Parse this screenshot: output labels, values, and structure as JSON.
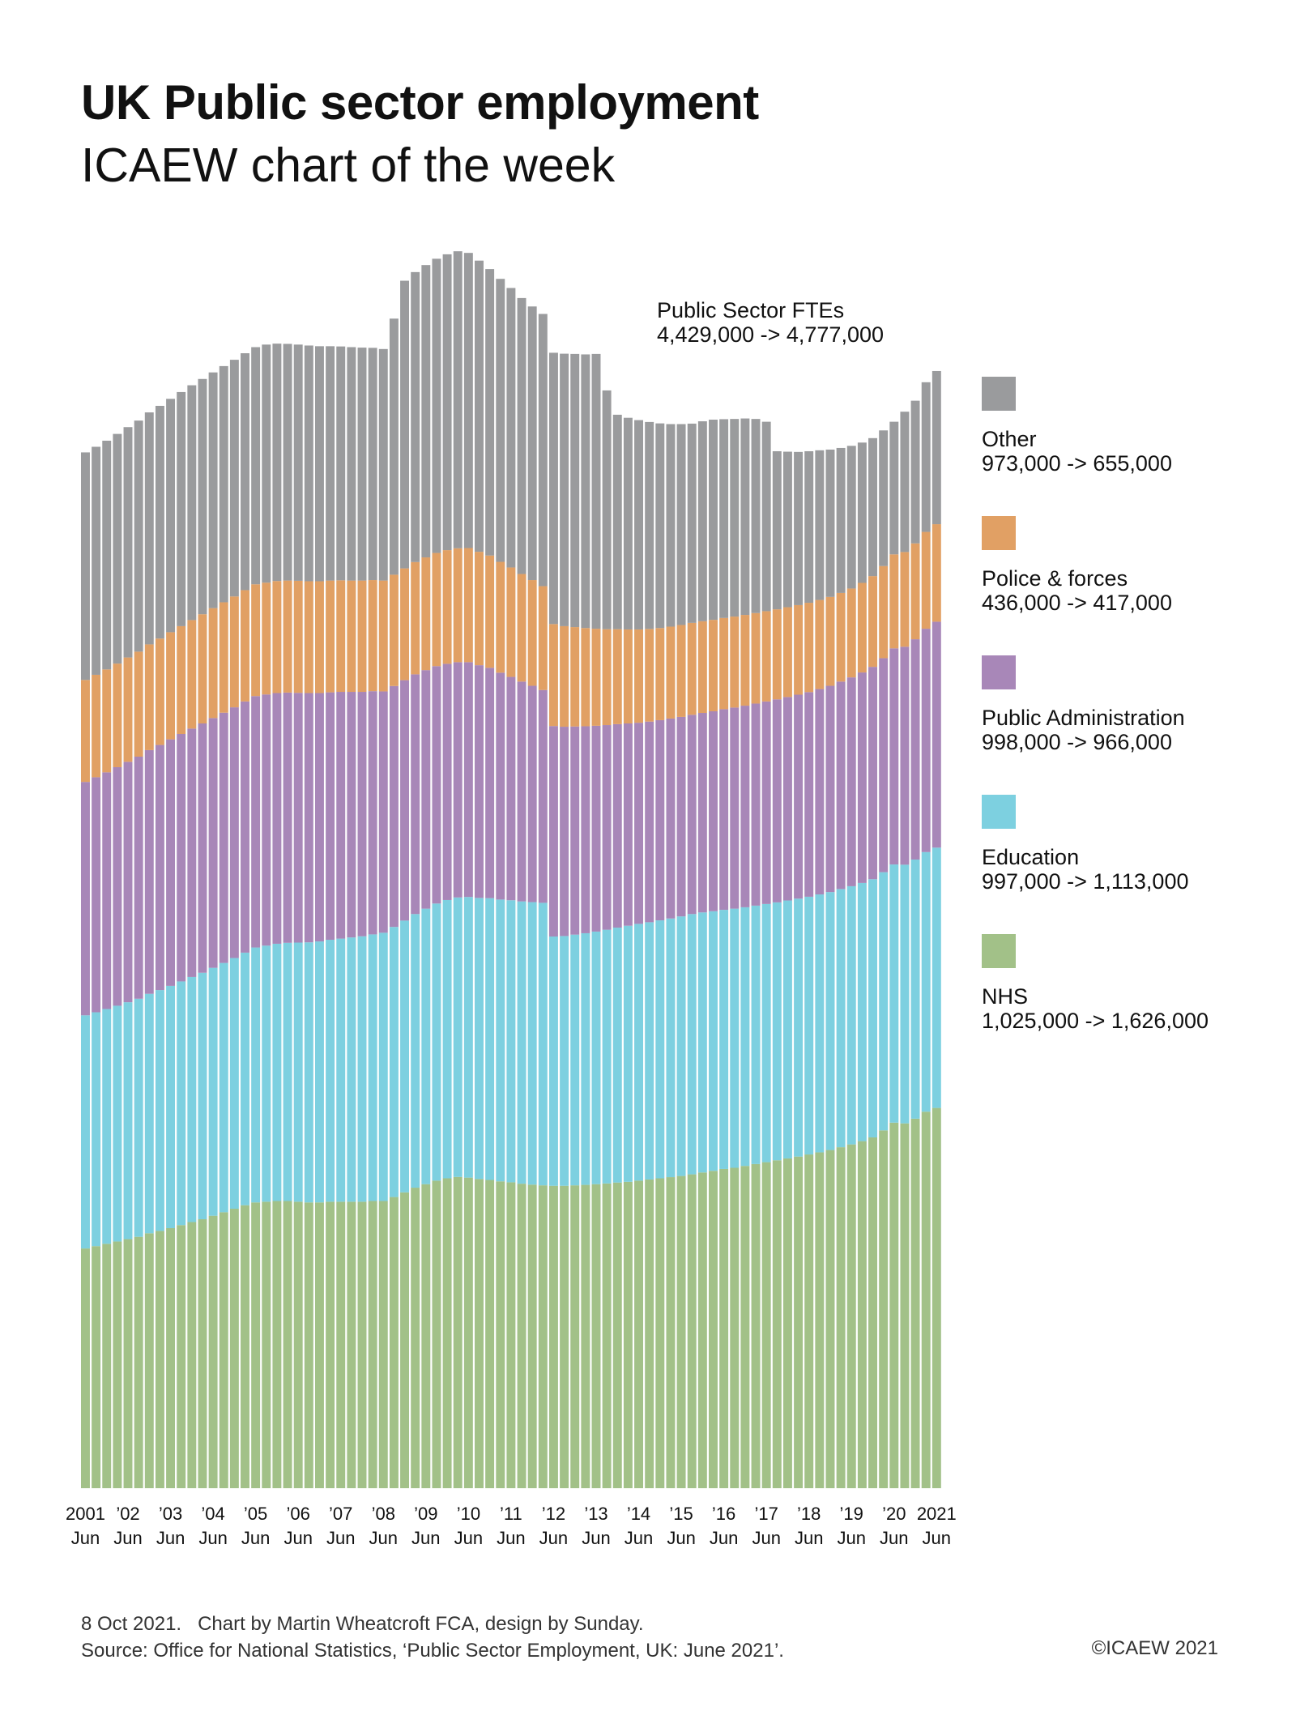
{
  "header": {
    "title": "UK Public sector employment",
    "subtitle": "ICAEW chart of the week"
  },
  "annotation": {
    "line1": "Public Sector FTEs",
    "line2": "4,429,000 -> 4,777,000"
  },
  "legend": [
    {
      "label": "Other",
      "change": "973,000 -> 655,000",
      "color": "#9a9b9d"
    },
    {
      "label": "Police & forces",
      "change": "436,000 -> 417,000",
      "color": "#e1a064"
    },
    {
      "label": "Public Administration",
      "change": "998,000 -> 966,000",
      "color": "#a887b8"
    },
    {
      "label": "Education",
      "change": "997,000 -> 1,113,000",
      "color": "#7dd0e0"
    },
    {
      "label": "NHS",
      "change": "1,025,000 -> 1,626,000",
      "color": "#a2c188"
    }
  ],
  "footer": {
    "line1": "8 Oct 2021.   Chart by Martin Wheatcroft FCA, design by Sunday.",
    "line2": "Source: Office for National Statistics, ‘Public Sector Employment, UK: June 2021’.",
    "copyright": "©ICAEW 2021"
  },
  "chart_data": {
    "type": "bar",
    "stacked": true,
    "units": "thousand FTEs",
    "x_start": "2001 Jun",
    "x_end": "2021 Jun",
    "frequency": "quarterly",
    "xticks": [
      {
        "top": "2001",
        "bottom": "Jun"
      },
      {
        "top": "’02",
        "bottom": "Jun"
      },
      {
        "top": "’03",
        "bottom": "Jun"
      },
      {
        "top": "’04",
        "bottom": "Jun"
      },
      {
        "top": "’05",
        "bottom": "Jun"
      },
      {
        "top": "’06",
        "bottom": "Jun"
      },
      {
        "top": "’07",
        "bottom": "Jun"
      },
      {
        "top": "’08",
        "bottom": "Jun"
      },
      {
        "top": "’09",
        "bottom": "Jun"
      },
      {
        "top": "’10",
        "bottom": "Jun"
      },
      {
        "top": "’11",
        "bottom": "Jun"
      },
      {
        "top": "’12",
        "bottom": "Jun"
      },
      {
        "top": "’13",
        "bottom": "Jun"
      },
      {
        "top": "’14",
        "bottom": "Jun"
      },
      {
        "top": "’15",
        "bottom": "Jun"
      },
      {
        "top": "’16",
        "bottom": "Jun"
      },
      {
        "top": "’17",
        "bottom": "Jun"
      },
      {
        "top": "’18",
        "bottom": "Jun"
      },
      {
        "top": "’19",
        "bottom": "Jun"
      },
      {
        "top": "’20",
        "bottom": "Jun"
      },
      {
        "top": "2021",
        "bottom": "Jun"
      }
    ],
    "ylim": [
      0,
      5300
    ],
    "grid": false,
    "legend_position": "right",
    "series": [
      {
        "name": "NHS",
        "color": "#a2c188",
        "values": [
          1025,
          1035,
          1045,
          1055,
          1065,
          1075,
          1090,
          1100,
          1112,
          1125,
          1138,
          1150,
          1165,
          1180,
          1195,
          1210,
          1222,
          1225,
          1228,
          1228,
          1225,
          1222,
          1222,
          1225,
          1225,
          1225,
          1225,
          1228,
          1228,
          1245,
          1265,
          1285,
          1300,
          1315,
          1325,
          1331,
          1328,
          1322,
          1318,
          1312,
          1308,
          1302,
          1298,
          1295,
          1293,
          1293,
          1295,
          1297,
          1300,
          1303,
          1307,
          1310,
          1315,
          1320,
          1325,
          1330,
          1335,
          1342,
          1350,
          1357,
          1365,
          1370,
          1378,
          1386,
          1394,
          1402,
          1410,
          1418,
          1427,
          1436,
          1446,
          1458,
          1470,
          1484,
          1500,
          1530,
          1563,
          1560,
          1580,
          1610,
          1626
        ]
      },
      {
        "name": "Education",
        "color": "#7dd0e0",
        "values": [
          997,
          1000,
          1004,
          1008,
          1013,
          1018,
          1024,
          1030,
          1036,
          1042,
          1048,
          1054,
          1060,
          1066,
          1072,
          1080,
          1090,
          1095,
          1100,
          1104,
          1108,
          1112,
          1116,
          1120,
          1125,
          1130,
          1135,
          1140,
          1147,
          1155,
          1162,
          1170,
          1178,
          1185,
          1190,
          1195,
          1200,
          1202,
          1205,
          1205,
          1206,
          1207,
          1208,
          1208,
          1066,
          1068,
          1072,
          1076,
          1080,
          1085,
          1090,
          1095,
          1098,
          1100,
          1103,
          1106,
          1110,
          1113,
          1112,
          1110,
          1108,
          1108,
          1106,
          1105,
          1104,
          1103,
          1103,
          1103,
          1102,
          1103,
          1103,
          1104,
          1104,
          1104,
          1104,
          1104,
          1104,
          1106,
          1108,
          1110,
          1113
        ]
      },
      {
        "name": "Public Administration",
        "color": "#a887b8",
        "values": [
          998,
          1005,
          1012,
          1020,
          1028,
          1035,
          1042,
          1048,
          1054,
          1058,
          1062,
          1066,
          1068,
          1070,
          1072,
          1074,
          1075,
          1074,
          1072,
          1070,
          1068,
          1066,
          1062,
          1058,
          1055,
          1050,
          1045,
          1040,
          1032,
          1030,
          1028,
          1025,
          1020,
          1015,
          1010,
          1006,
          1004,
          995,
          985,
          970,
          955,
          940,
          925,
          910,
          900,
          895,
          890,
          885,
          880,
          875,
          870,
          865,
          860,
          858,
          856,
          855,
          853,
          852,
          853,
          855,
          858,
          860,
          862,
          864,
          866,
          868,
          870,
          872,
          875,
          878,
          882,
          887,
          893,
          900,
          908,
          915,
          924,
          932,
          942,
          955,
          966
        ]
      },
      {
        "name": "Police & forces",
        "color": "#e1a064",
        "values": [
          436,
          438,
          440,
          443,
          446,
          449,
          452,
          455,
          458,
          461,
          464,
          467,
          470,
          472,
          474,
          476,
          478,
          478,
          479,
          479,
          479,
          478,
          478,
          478,
          477,
          476,
          476,
          475,
          474,
          476,
          478,
          480,
          482,
          484,
          486,
          487,
          488,
          485,
          480,
          474,
          468,
          460,
          452,
          444,
          436,
          430,
          425,
          420,
          415,
          410,
          406,
          402,
          399,
          396,
          394,
          393,
          393,
          393,
          392,
          391,
          390,
          389,
          388,
          387,
          386,
          385,
          384,
          383,
          382,
          381,
          380,
          379,
          380,
          383,
          388,
          394,
          402,
          405,
          410,
          414,
          417
        ]
      },
      {
        "name": "Other",
        "color": "#9a9b9d",
        "values": [
          973,
          975,
          978,
          982,
          985,
          988,
          992,
          995,
          998,
          1001,
          1004,
          1006,
          1008,
          1010,
          1012,
          1013,
          1014,
          1018,
          1015,
          1012,
          1010,
          1008,
          1005,
          1002,
          1000,
          998,
          996,
          993,
          990,
          1095,
          1230,
          1240,
          1250,
          1258,
          1265,
          1270,
          1262,
          1245,
          1225,
          1210,
          1195,
          1180,
          1170,
          1164,
          1160,
          1165,
          1168,
          1170,
          1175,
          1021,
          917,
          905,
          895,
          885,
          875,
          866,
          859,
          852,
          855,
          856,
          850,
          845,
          840,
          830,
          810,
          676,
          665,
          655,
          648,
          640,
          630,
          620,
          610,
          600,
          590,
          580,
          567,
          600,
          610,
          640,
          655
        ]
      }
    ]
  }
}
